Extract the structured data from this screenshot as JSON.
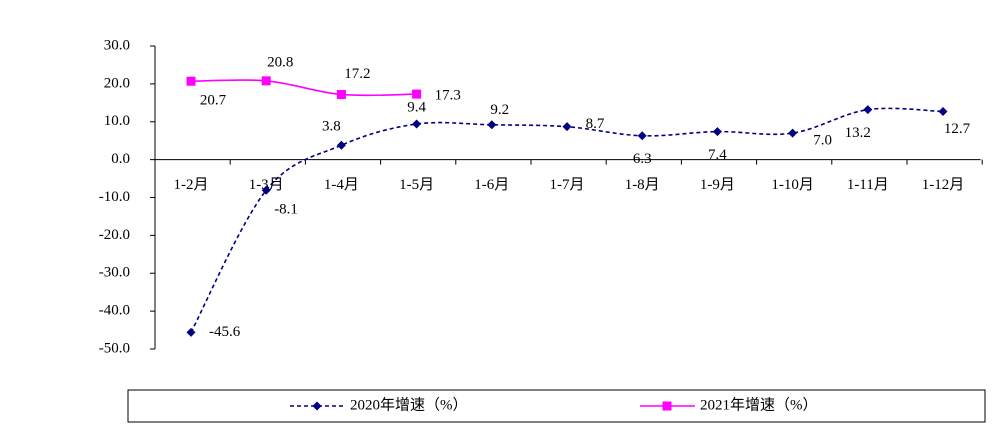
{
  "chart_data": {
    "type": "line",
    "categories": [
      "1-2月",
      "1-3月",
      "1-4月",
      "1-5月",
      "1-6月",
      "1-7月",
      "1-8月",
      "1-9月",
      "1-10月",
      "1-11月",
      "1-12月"
    ],
    "series": [
      {
        "name": "2020年增速（%）",
        "color": "#000080",
        "dash": true,
        "marker": "diamond",
        "values": [
          -45.6,
          -8.1,
          3.8,
          9.4,
          9.2,
          8.7,
          6.3,
          7.4,
          7.0,
          13.2,
          12.7
        ],
        "value_labels": [
          "-45.6",
          "-8.1",
          "3.8",
          "9.4",
          "9.2",
          "8.7",
          "6.3",
          "7.4",
          "7.0",
          "13.2",
          "12.7"
        ]
      },
      {
        "name": "2021年增速（%）",
        "color": "#ff00ff",
        "dash": false,
        "marker": "square",
        "values": [
          20.7,
          20.8,
          17.2,
          17.3,
          null,
          null,
          null,
          null,
          null,
          null,
          null
        ],
        "value_labels": [
          "20.7",
          "20.8",
          "17.2",
          "17.3",
          null,
          null,
          null,
          null,
          null,
          null,
          null
        ]
      }
    ],
    "ylim": [
      -50,
      30
    ],
    "yticks": [
      {
        "value": -50,
        "label": "-50.0"
      },
      {
        "value": -40,
        "label": "-40.0"
      },
      {
        "value": -30,
        "label": "-30.0"
      },
      {
        "value": -20,
        "label": "-20.0"
      },
      {
        "value": -10,
        "label": "-10.0"
      },
      {
        "value": 0,
        "label": "0.0"
      },
      {
        "value": 10,
        "label": "10.0"
      },
      {
        "value": 20,
        "label": "20.0"
      },
      {
        "value": 30,
        "label": "30.0"
      }
    ],
    "legend": "bottom"
  }
}
